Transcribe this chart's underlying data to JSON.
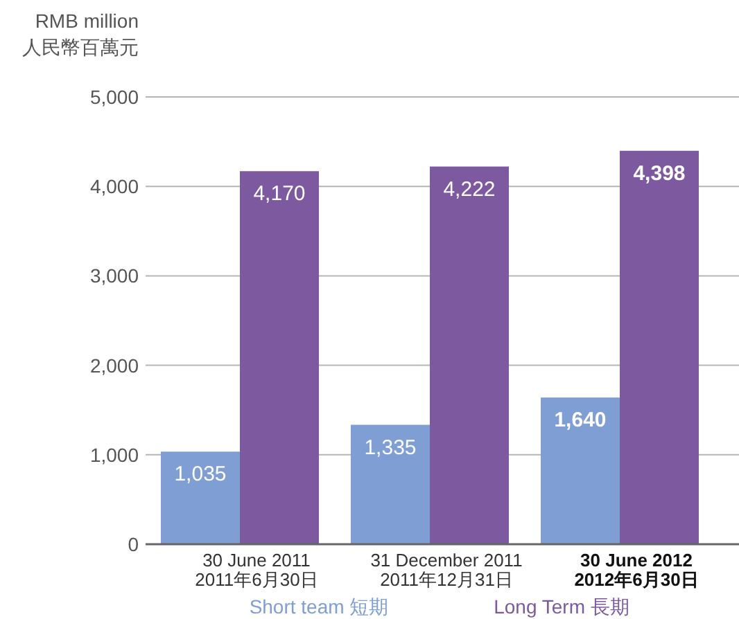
{
  "chart_data": {
    "type": "bar",
    "ylabel": "RMB million\n人民幣百萬元",
    "categories": [
      "30 June 2011\n2011年6月30日",
      "31 December 2011\n2011年12月31日",
      "30 June 2012\n2012年6月30日"
    ],
    "series": [
      {
        "name": "Short team 短期",
        "color": "#7f9fd4",
        "values": [
          1035,
          1335,
          1640
        ],
        "value_labels": [
          "1,035",
          "1,335",
          "1,640"
        ]
      },
      {
        "name": "Long Term 長期",
        "color": "#7d5aa0",
        "values": [
          4170,
          4222,
          4398
        ],
        "value_labels": [
          "4,170",
          "4,222",
          "4,398"
        ]
      }
    ],
    "ylim": [
      0,
      5000
    ],
    "yticks": [
      {
        "value": 0,
        "label": "0"
      },
      {
        "value": 1000,
        "label": "1,000"
      },
      {
        "value": 2000,
        "label": "2,000"
      },
      {
        "value": 3000,
        "label": "3,000"
      },
      {
        "value": 4000,
        "label": "4,000"
      },
      {
        "value": 5000,
        "label": "5,000"
      }
    ],
    "grid": "y",
    "legend": "bottom"
  }
}
